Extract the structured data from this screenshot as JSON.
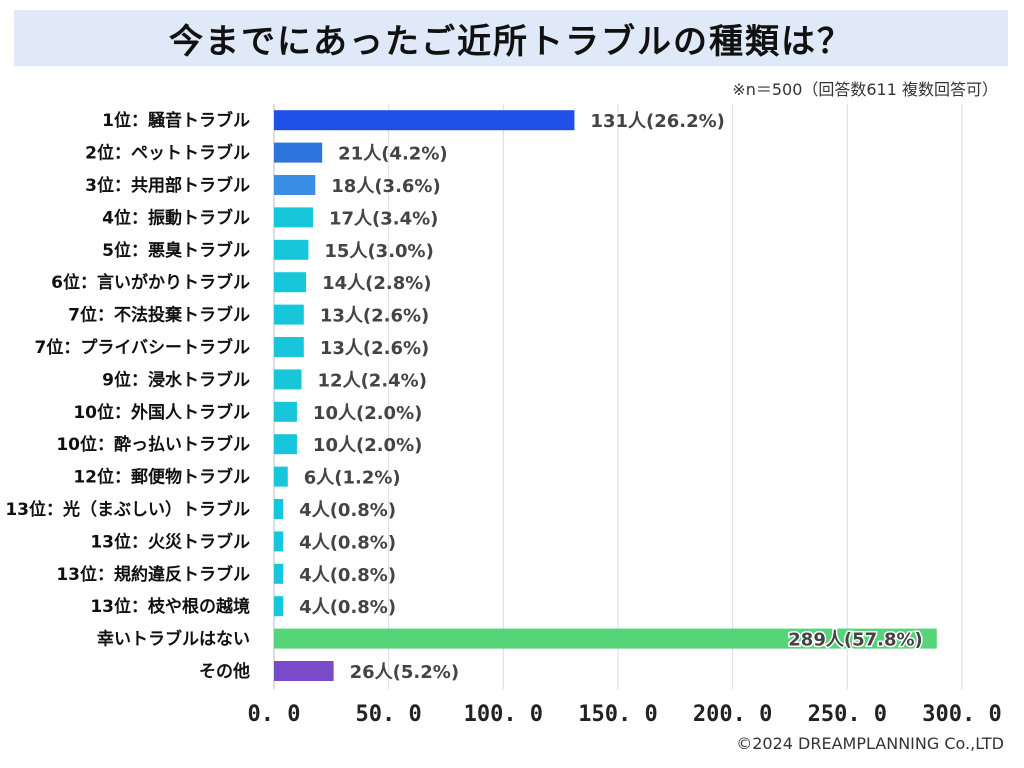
{
  "header": {
    "title": "今までにあったご近所トラブルの種類は？",
    "note": "※n＝500（回答数611 複数回答可）"
  },
  "footer": {
    "copyright": "©2024 DREAMPLANNING Co.,LTD"
  },
  "colors": {
    "title_bg": "#dfe9f7",
    "top1": "#1f4fe6",
    "top2": "#2f74dc",
    "top3": "#3a8ee6",
    "others": "#18c6dc",
    "none": "#55d47a",
    "other": "#7a4bc8",
    "grid": "#dddddd"
  },
  "chart_data": {
    "type": "bar",
    "orientation": "horizontal",
    "title": "今までにあったご近所トラブルの種類は？",
    "xlim": [
      0,
      300
    ],
    "xticks": [
      0,
      50,
      100,
      150,
      200,
      250,
      300
    ],
    "xtick_labels": [
      "0. 0",
      "50. 0",
      "100. 0",
      "150. 0",
      "200. 0",
      "250. 0",
      "300. 0"
    ],
    "grid": true,
    "categories": [
      "1位：騒音トラブル",
      "2位：ペットトラブル",
      "3位：共用部トラブル",
      "4位：振動トラブル",
      "5位：悪臭トラブル",
      "6位：言いがかりトラブル",
      "7位：不法投棄トラブル",
      "7位：プライバシートラブル",
      "9位：浸水トラブル",
      "10位：外国人トラブル",
      "10位：酔っ払いトラブル",
      "12位：郵便物トラブル",
      "13位：光（まぶしい）トラブル",
      "13位：火災トラブル",
      "13位：規約違反トラブル",
      "13位：枝や根の越境",
      "幸いトラブルはない",
      "その他"
    ],
    "values": [
      131,
      21,
      18,
      17,
      15,
      14,
      13,
      13,
      12,
      10,
      10,
      6,
      4,
      4,
      4,
      4,
      289,
      26
    ],
    "value_labels": [
      "131人(26.2%)",
      "21人(4.2%)",
      "18人(3.6%)",
      "17人(3.4%)",
      "15人(3.0%)",
      "14人(2.8%)",
      "13人(2.6%)",
      "13人(2.6%)",
      "12人(2.4%)",
      "10人(2.0%)",
      "10人(2.0%)",
      "6人(1.2%)",
      "4人(0.8%)",
      "4人(0.8%)",
      "4人(0.8%)",
      "4人(0.8%)",
      "289人(57.8%)",
      "26人(5.2%)"
    ],
    "bar_colors": [
      "#1f4fe6",
      "#2f74dc",
      "#3a8ee6",
      "#18c6dc",
      "#18c6dc",
      "#18c6dc",
      "#18c6dc",
      "#18c6dc",
      "#18c6dc",
      "#18c6dc",
      "#18c6dc",
      "#18c6dc",
      "#18c6dc",
      "#18c6dc",
      "#18c6dc",
      "#18c6dc",
      "#55d47a",
      "#7a4bc8"
    ]
  }
}
